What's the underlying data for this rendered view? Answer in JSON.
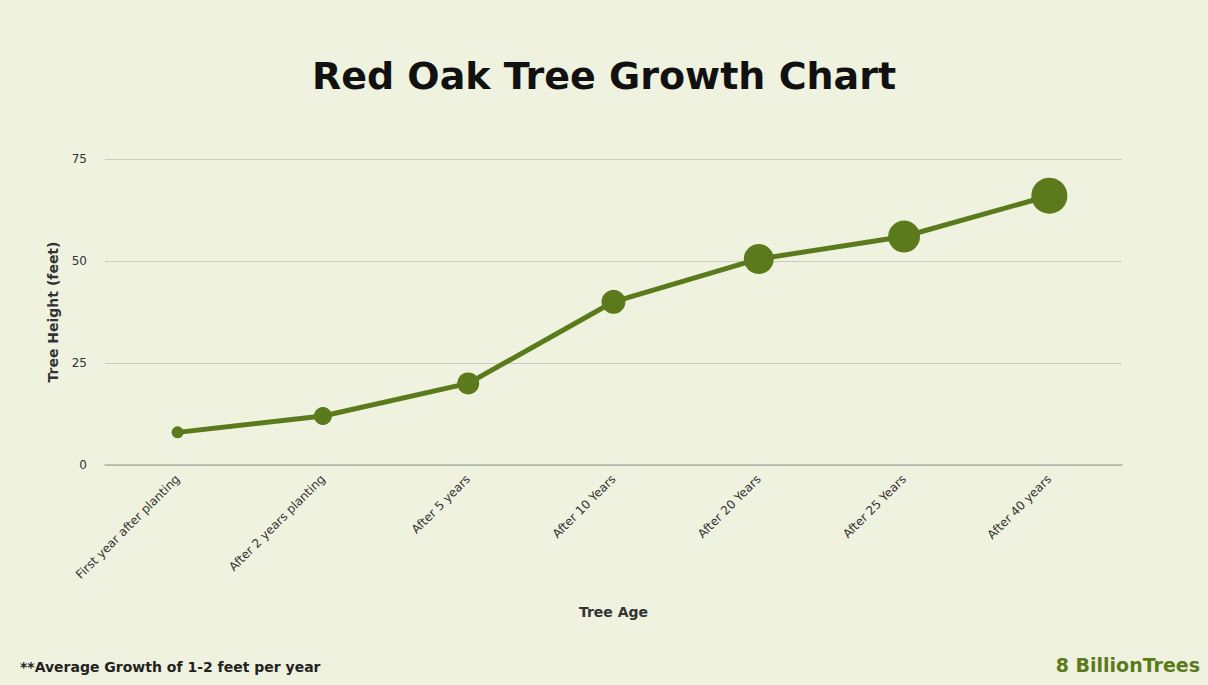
{
  "chart_data": {
    "type": "line",
    "title": "Red Oak Tree Growth Chart",
    "x_label": "Tree Age",
    "y_label": "Tree Height (feet)",
    "categories": [
      "First year after planting",
      "After 2 years planting",
      "After 5 years",
      "After 10 Years",
      "After 20 Years",
      "After 25 Years",
      "After 40 years"
    ],
    "values": [
      8,
      12,
      20,
      40,
      50.5,
      56,
      66
    ],
    "color": "#5b7a1c",
    "marker": "circle",
    "ylim": [
      0,
      75
    ],
    "yticks": [
      0,
      25,
      50,
      75
    ],
    "grid": true,
    "annotations": [
      "**Average Growth of 1-2 feet per year",
      "8 BillionTrees"
    ]
  }
}
